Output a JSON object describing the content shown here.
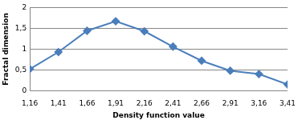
{
  "chart_data": {
    "type": "line",
    "x_label": "Density function value",
    "y_label": "Fractal dimension",
    "categories": [
      "1,16",
      "1,41",
      "1,66",
      "1,91",
      "2,16",
      "2,41",
      "2,66",
      "2,91",
      "3,16",
      "3,41"
    ],
    "values": [
      0.52,
      0.93,
      1.44,
      1.67,
      1.43,
      1.06,
      0.72,
      0.48,
      0.4,
      0.15
    ],
    "color": "#4a7ebb",
    "marker": "diamond",
    "line_style": "solid",
    "ylim": [
      0,
      2
    ],
    "yticks": [
      0,
      {
        "value": 0.5,
        "label": "0,5"
      },
      1,
      {
        "value": 1.5,
        "label": "1,5"
      },
      2
    ],
    "grid": true
  }
}
